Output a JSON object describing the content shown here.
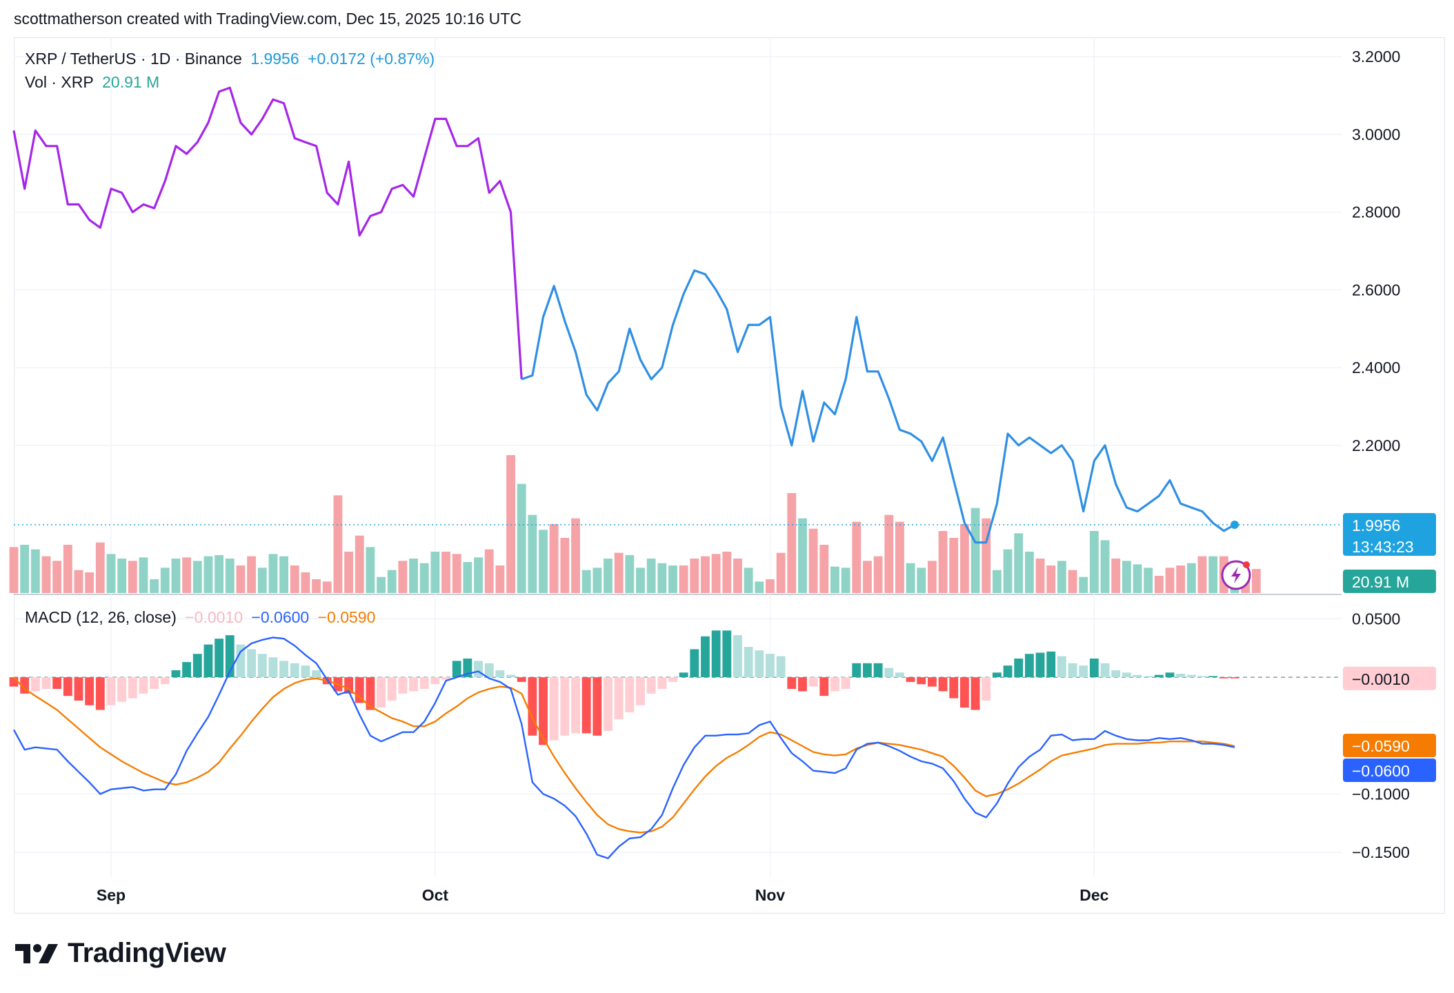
{
  "header": {
    "credit": "scottmatherson created with TradingView.com, Dec 15, 2025 10:16 UTC"
  },
  "legend": {
    "symbol": "XRP / TetherUS · 1D · Binance",
    "last_price": "1.9956",
    "change": "+0.0172 (+0.87%)",
    "vol_label": "Vol · XRP",
    "vol_value": "20.91 M",
    "macd_label": "MACD (12, 26, close)",
    "macd_hist": "−0.0010",
    "macd_value": "−0.0600",
    "macd_signal": "−0.0590"
  },
  "badges": {
    "price": "1.9956",
    "countdown": "13:43:23",
    "volume": "20.91 M",
    "hist": "−0.0010",
    "signal": "−0.0590",
    "macd": "−0.0600"
  },
  "colors": {
    "price_purple": "#a526e8",
    "price_blue": "#2f8fe4",
    "vol_up": "#8fd3c7",
    "vol_down": "#f5a3a7",
    "hist_up_strong": "#26a69a",
    "hist_up_weak": "#b2dfdb",
    "hist_down_strong": "#ff5252",
    "hist_down_weak": "#ffcdd2",
    "macd_line": "#2962ff",
    "signal_line": "#f57c00",
    "price_badge": "#1fa3e0",
    "volume_badge": "#26a69a"
  },
  "footer": {
    "brand": "TradingView"
  },
  "chart_data": {
    "type": "line",
    "title": "XRP / TetherUS · 1D · Binance",
    "x_range": [
      "2025-08-23",
      "2025-12-15"
    ],
    "x_ticks": [
      "Sep",
      "Oct",
      "Nov",
      "Dec"
    ],
    "price": {
      "ylim": [
        1.82,
        3.25
      ],
      "y_ticks": [
        "3.2000",
        "3.0000",
        "2.8000",
        "2.6000",
        "2.4000",
        "2.2000"
      ],
      "close": [
        3.01,
        2.86,
        3.01,
        2.97,
        2.97,
        2.82,
        2.82,
        2.78,
        2.76,
        2.86,
        2.85,
        2.8,
        2.82,
        2.81,
        2.88,
        2.97,
        2.95,
        2.98,
        3.03,
        3.11,
        3.12,
        3.03,
        3.0,
        3.04,
        3.09,
        3.08,
        2.99,
        2.98,
        2.97,
        2.85,
        2.82,
        2.93,
        2.74,
        2.79,
        2.8,
        2.86,
        2.87,
        2.84,
        2.94,
        3.04,
        3.04,
        2.97,
        2.97,
        2.99,
        2.85,
        2.88,
        2.8,
        2.37,
        2.38,
        2.53,
        2.61,
        2.52,
        2.44,
        2.33,
        2.29,
        2.36,
        2.39,
        2.5,
        2.42,
        2.37,
        2.4,
        2.51,
        2.59,
        2.65,
        2.64,
        2.6,
        2.55,
        2.44,
        2.51,
        2.51,
        2.53,
        2.3,
        2.2,
        2.34,
        2.21,
        2.31,
        2.28,
        2.37,
        2.53,
        2.39,
        2.39,
        2.32,
        2.24,
        2.23,
        2.21,
        2.16,
        2.22,
        2.11,
        2.0,
        1.95,
        1.95,
        2.05,
        2.23,
        2.2,
        2.22,
        2.2,
        2.18,
        2.2,
        2.16,
        2.03,
        2.16,
        2.2,
        2.1,
        2.04,
        2.03,
        2.05,
        2.07,
        2.11,
        2.05,
        2.04,
        2.03,
        2.0,
        1.98,
        1.9956
      ],
      "color_change_index": 47
    },
    "volume": {
      "last": "20.91 M",
      "values": [
        40,
        42,
        38,
        32,
        28,
        42,
        20,
        18,
        44,
        34,
        30,
        28,
        31,
        12,
        22,
        30,
        31,
        28,
        32,
        33,
        30,
        24,
        32,
        22,
        34,
        32,
        24,
        18,
        12,
        10,
        85,
        36,
        50,
        40,
        14,
        20,
        28,
        30,
        26,
        36,
        36,
        34,
        27,
        31,
        38,
        24,
        120,
        95,
        68,
        55,
        60,
        48,
        65,
        20,
        22,
        30,
        35,
        33,
        22,
        30,
        26,
        24,
        24,
        30,
        32,
        34,
        36,
        30,
        22,
        10,
        12,
        35,
        87,
        65,
        56,
        42,
        23,
        22,
        62,
        28,
        32,
        68,
        62,
        26,
        22,
        28,
        54,
        48,
        60,
        74,
        65,
        20,
        38,
        52,
        36,
        30,
        24,
        28,
        20,
        14,
        54,
        46,
        30,
        28,
        25,
        22,
        15,
        22,
        24,
        26,
        32,
        32,
        32,
        18,
        11,
        20.91
      ],
      "up": [
        false,
        true,
        true,
        false,
        false,
        false,
        false,
        false,
        false,
        true,
        true,
        false,
        true,
        true,
        true,
        true,
        false,
        true,
        true,
        true,
        true,
        false,
        false,
        true,
        true,
        true,
        false,
        false,
        false,
        false,
        false,
        false,
        false,
        true,
        true,
        true,
        false,
        true,
        true,
        true,
        false,
        false,
        true,
        true,
        false,
        false,
        false,
        true,
        true,
        true,
        false,
        false,
        false,
        true,
        true,
        true,
        false,
        true,
        true,
        true,
        true,
        true,
        false,
        false,
        false,
        false,
        false,
        false,
        true,
        true,
        false,
        false,
        false,
        true,
        false,
        false,
        true,
        true,
        false,
        false,
        false,
        false,
        false,
        true,
        true,
        false,
        false,
        false,
        false,
        true,
        false,
        true,
        true,
        true,
        true,
        false,
        false,
        true,
        false,
        true,
        true,
        true,
        false,
        true,
        true,
        true,
        false,
        false,
        false,
        true,
        false,
        true,
        false,
        true,
        false,
        false
      ]
    },
    "macd": {
      "ylim": [
        -0.17,
        0.065
      ],
      "y_ticks": [
        "0.0500",
        "−0.1000",
        "−0.1500"
      ],
      "macd_line": [
        -0.045,
        -0.062,
        -0.06,
        -0.061,
        -0.062,
        -0.072,
        -0.081,
        -0.09,
        -0.1,
        -0.096,
        -0.095,
        -0.094,
        -0.097,
        -0.096,
        -0.096,
        -0.083,
        -0.063,
        -0.048,
        -0.034,
        -0.015,
        0.005,
        0.022,
        0.029,
        0.032,
        0.034,
        0.033,
        0.027,
        0.019,
        0.012,
        -0.002,
        -0.015,
        -0.012,
        -0.032,
        -0.05,
        -0.055,
        -0.051,
        -0.047,
        -0.047,
        -0.038,
        -0.022,
        -0.003,
        0.0,
        0.003,
        0.005,
        -0.001,
        -0.004,
        -0.01,
        -0.04,
        -0.09,
        -0.1,
        -0.104,
        -0.11,
        -0.119,
        -0.134,
        -0.152,
        -0.155,
        -0.145,
        -0.138,
        -0.137,
        -0.13,
        -0.118,
        -0.095,
        -0.075,
        -0.06,
        -0.05,
        -0.05,
        -0.049,
        -0.049,
        -0.048,
        -0.041,
        -0.038,
        -0.052,
        -0.065,
        -0.072,
        -0.08,
        -0.081,
        -0.082,
        -0.078,
        -0.062,
        -0.057,
        -0.056,
        -0.059,
        -0.063,
        -0.068,
        -0.072,
        -0.074,
        -0.078,
        -0.089,
        -0.104,
        -0.116,
        -0.12,
        -0.108,
        -0.091,
        -0.077,
        -0.068,
        -0.062,
        -0.05,
        -0.049,
        -0.054,
        -0.053,
        -0.053,
        -0.046,
        -0.05,
        -0.053,
        -0.054,
        -0.054,
        -0.052,
        -0.053,
        -0.052,
        -0.054,
        -0.057,
        -0.057,
        -0.058,
        -0.06
      ],
      "signal_line": [
        0.0,
        -0.01,
        -0.016,
        -0.022,
        -0.028,
        -0.036,
        -0.044,
        -0.052,
        -0.06,
        -0.066,
        -0.072,
        -0.077,
        -0.082,
        -0.086,
        -0.09,
        -0.092,
        -0.09,
        -0.086,
        -0.081,
        -0.073,
        -0.061,
        -0.05,
        -0.038,
        -0.027,
        -0.017,
        -0.01,
        -0.005,
        -0.002,
        -0.001,
        -0.003,
        -0.006,
        -0.01,
        -0.017,
        -0.025,
        -0.03,
        -0.035,
        -0.038,
        -0.042,
        -0.042,
        -0.038,
        -0.031,
        -0.025,
        -0.018,
        -0.013,
        -0.01,
        -0.008,
        -0.009,
        -0.014,
        -0.035,
        -0.052,
        -0.068,
        -0.082,
        -0.095,
        -0.107,
        -0.118,
        -0.126,
        -0.13,
        -0.132,
        -0.133,
        -0.132,
        -0.128,
        -0.12,
        -0.108,
        -0.096,
        -0.085,
        -0.076,
        -0.069,
        -0.064,
        -0.058,
        -0.051,
        -0.047,
        -0.049,
        -0.054,
        -0.059,
        -0.064,
        -0.066,
        -0.067,
        -0.066,
        -0.061,
        -0.058,
        -0.056,
        -0.057,
        -0.058,
        -0.06,
        -0.062,
        -0.065,
        -0.068,
        -0.076,
        -0.086,
        -0.097,
        -0.102,
        -0.1,
        -0.096,
        -0.091,
        -0.085,
        -0.079,
        -0.072,
        -0.067,
        -0.065,
        -0.063,
        -0.061,
        -0.058,
        -0.057,
        -0.057,
        -0.057,
        -0.056,
        -0.056,
        -0.055,
        -0.055,
        -0.055,
        -0.055,
        -0.056,
        -0.057,
        -0.059
      ],
      "histogram": [
        -0.008,
        -0.014,
        -0.012,
        -0.01,
        -0.01,
        -0.016,
        -0.02,
        -0.024,
        -0.028,
        -0.024,
        -0.021,
        -0.018,
        -0.014,
        -0.01,
        -0.006,
        0.006,
        0.013,
        0.02,
        0.028,
        0.033,
        0.036,
        0.028,
        0.024,
        0.02,
        0.017,
        0.014,
        0.012,
        0.01,
        0.006,
        -0.006,
        -0.012,
        -0.014,
        -0.022,
        -0.028,
        -0.026,
        -0.02,
        -0.014,
        -0.012,
        -0.01,
        -0.006,
        -0.002,
        0.014,
        0.016,
        0.014,
        0.012,
        0.006,
        0.002,
        -0.004,
        -0.05,
        -0.058,
        -0.054,
        -0.05,
        -0.048,
        -0.048,
        -0.05,
        -0.046,
        -0.036,
        -0.03,
        -0.024,
        -0.014,
        -0.01,
        -0.004,
        0.004,
        0.024,
        0.035,
        0.04,
        0.04,
        0.036,
        0.026,
        0.023,
        0.02,
        0.018,
        -0.01,
        -0.012,
        -0.008,
        -0.016,
        -0.012,
        -0.01,
        0.012,
        0.012,
        0.012,
        0.008,
        0.004,
        -0.004,
        -0.006,
        -0.008,
        -0.012,
        -0.018,
        -0.026,
        -0.028,
        -0.02,
        0.004,
        0.01,
        0.016,
        0.02,
        0.021,
        0.022,
        0.018,
        0.012,
        0.01,
        0.016,
        0.012,
        0.006,
        0.004,
        0.002,
        0.001,
        0.002,
        0.004,
        0.003,
        0.002,
        0.001,
        0.001,
        -0.001,
        -0.001
      ]
    }
  }
}
